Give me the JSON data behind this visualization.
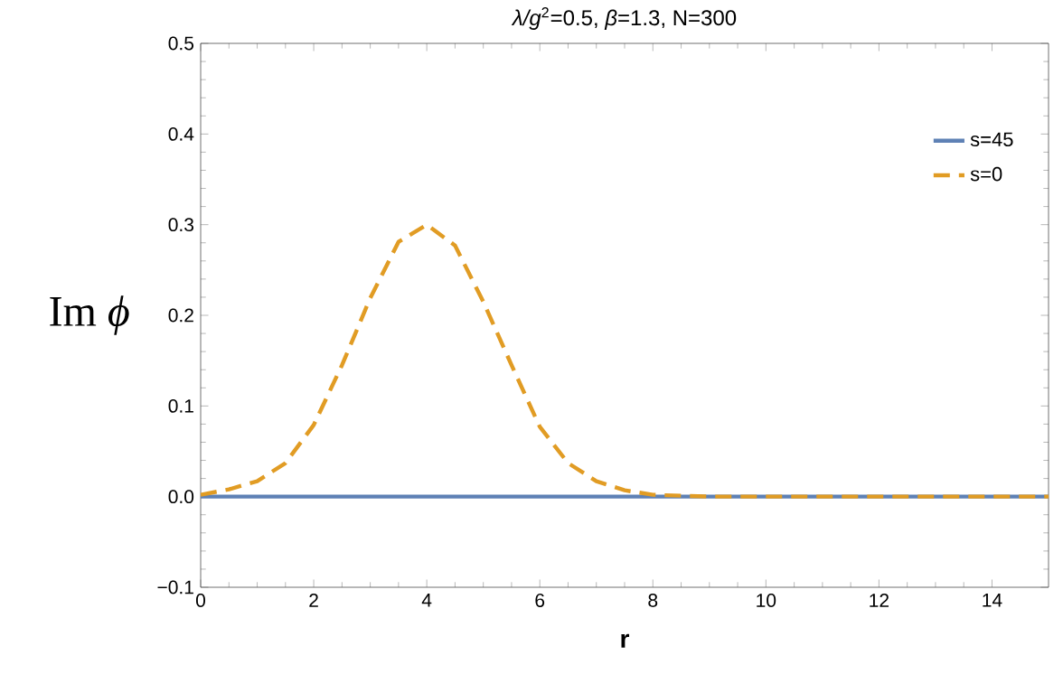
{
  "chart_data": {
    "type": "line",
    "title": "*λ/g*$^{2}$=0.5, *β*=1.3, N=300",
    "xlabel": "r",
    "ylabel": "Im *ϕ*",
    "series": [
      {
        "name": "s=45",
        "color": "#5e81b5",
        "line_style": "solid",
        "x": [
          0,
          15
        ],
        "values": [
          0,
          0
        ]
      },
      {
        "name": "s=0",
        "color": "#e19c24",
        "line_style": "dashed",
        "x": [
          0,
          0.5,
          1,
          1.5,
          2,
          2.5,
          3,
          3.5,
          4,
          4.5,
          5,
          5.5,
          6,
          6.5,
          7,
          7.5,
          8,
          9,
          10,
          12,
          15
        ],
        "values": [
          0.002,
          0.008,
          0.017,
          0.037,
          0.079,
          0.145,
          0.219,
          0.281,
          0.3,
          0.277,
          0.215,
          0.145,
          0.077,
          0.037,
          0.017,
          0.007,
          0.002,
          0,
          0,
          0,
          0
        ]
      }
    ],
    "xlim": [
      0,
      15
    ],
    "ylim": [
      -0.1,
      0.5
    ],
    "xticks": [
      0,
      2,
      4,
      6,
      8,
      10,
      12,
      14
    ],
    "yticks": [
      {
        "value": -0.1,
        "label": "−0.1"
      },
      {
        "value": 0,
        "label": "0.0"
      },
      0.1,
      0.2,
      0.3,
      0.4,
      0.5
    ],
    "legend": "top right",
    "grid": false,
    "marker": "none"
  }
}
